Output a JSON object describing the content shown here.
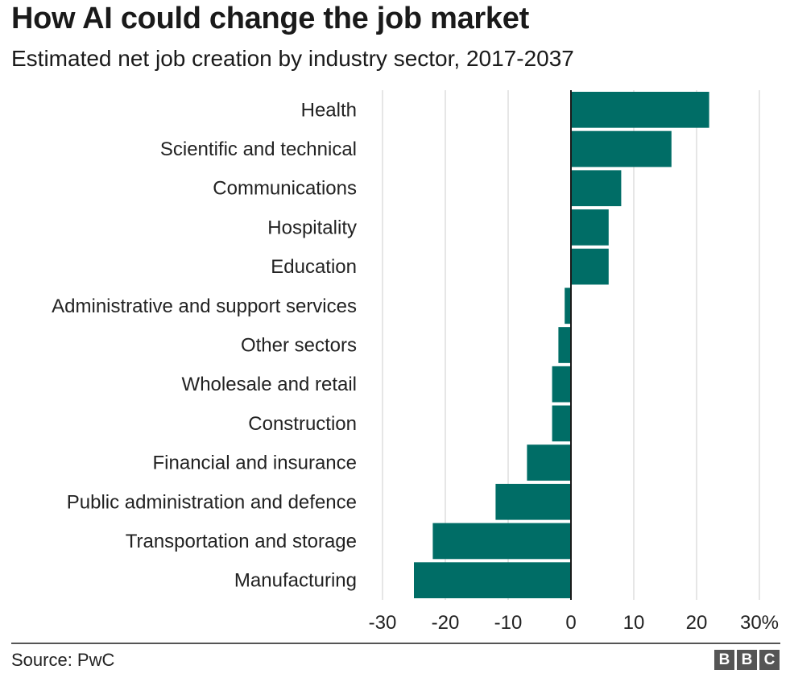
{
  "title": "How AI could change the job market",
  "subtitle": "Estimated net job creation by industry sector, 2017-2037",
  "source": "Source: PwC",
  "logo": [
    "B",
    "B",
    "C"
  ],
  "colors": {
    "bar": "#006d66",
    "grid": "#cccccc",
    "zero_line": "#1a1a1a",
    "logo": "#555555"
  },
  "chart_data": {
    "type": "bar",
    "orientation": "horizontal",
    "title": "How AI could change the job market",
    "subtitle": "Estimated net job creation by industry sector, 2017-2037",
    "xlabel": "",
    "ylabel": "",
    "unit": "%",
    "xlim": [
      -30,
      30
    ],
    "xticks": [
      -30,
      -20,
      -10,
      0,
      10,
      20,
      30
    ],
    "xtick_labels": [
      "-30",
      "-20",
      "-10",
      "0",
      "10",
      "20",
      "30%"
    ],
    "grid": true,
    "categories": [
      "Health",
      "Scientific and technical",
      "Communications",
      "Hospitality",
      "Education",
      "Administrative and support services",
      "Other sectors",
      "Wholesale and retail",
      "Construction",
      "Financial and insurance",
      "Public administration and defence",
      "Transportation and storage",
      "Manufacturing"
    ],
    "values": [
      22,
      16,
      8,
      6,
      6,
      -1,
      -2,
      -3,
      -3,
      -7,
      -12,
      -22,
      -25
    ]
  }
}
